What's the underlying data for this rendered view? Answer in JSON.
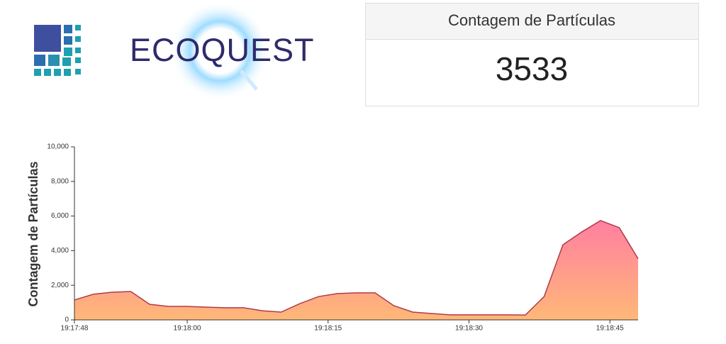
{
  "header": {
    "logo_text": "ECOQUEST"
  },
  "card": {
    "title": "Contagem de Partículas",
    "value": "3533"
  },
  "chart_data": {
    "type": "area",
    "y_label": "Contagem de Partículas",
    "x": [
      "19:17:48",
      "19:17:50",
      "19:17:52",
      "19:17:54",
      "19:17:56",
      "19:17:58",
      "19:18:00",
      "19:18:02",
      "19:18:04",
      "19:18:06",
      "19:18:08",
      "19:18:10",
      "19:18:12",
      "19:18:14",
      "19:18:16",
      "19:18:18",
      "19:18:20",
      "19:18:22",
      "19:18:24",
      "19:18:26",
      "19:18:28",
      "19:18:30",
      "19:18:32",
      "19:18:34",
      "19:18:36",
      "19:18:38",
      "19:18:40",
      "19:18:42",
      "19:18:44",
      "19:18:46",
      "19:18:48"
    ],
    "values": [
      1150,
      1480,
      1600,
      1640,
      900,
      780,
      780,
      740,
      700,
      700,
      530,
      450,
      940,
      1350,
      1520,
      1560,
      1560,
      820,
      450,
      370,
      290,
      290,
      290,
      290,
      280,
      1350,
      4340,
      5080,
      5740,
      5330,
      3533
    ],
    "color": "#b03a48",
    "fill_colors": [
      "#ff7fa0",
      "#ffb878"
    ],
    "xlim": [
      "19:17:48",
      "19:18:48"
    ],
    "xticks": [
      "19:17:48",
      "19:18:00",
      "19:18:15",
      "19:18:30",
      "19:18:45"
    ],
    "ylim": [
      0,
      10000
    ],
    "yticks": [
      0,
      {
        "value": 2000,
        "label": "2,000"
      },
      {
        "value": 4000,
        "label": "4,000"
      },
      {
        "value": 6000,
        "label": "6,000"
      },
      {
        "value": 8000,
        "label": "8,000"
      },
      {
        "value": 10000,
        "label": "10,000"
      }
    ]
  }
}
